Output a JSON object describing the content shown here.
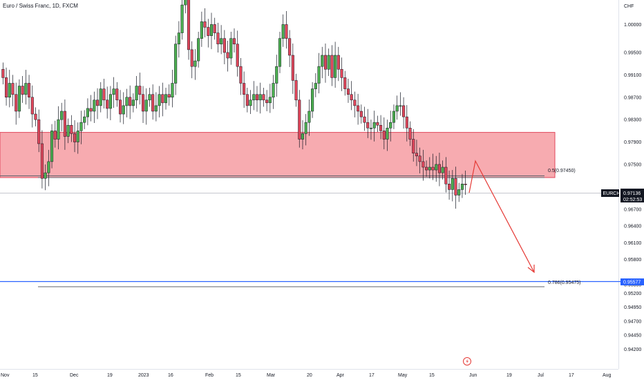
{
  "header": {
    "title": "Euro / Swiss Franc, 1D, FXCM"
  },
  "price_axis": {
    "currency": "CHF"
  },
  "symbol_badge": {
    "symbol": "EURCHF",
    "price": "0.97136",
    "countdown": "02:52:53"
  },
  "blue_line_label": "0.95577",
  "fib_levels": [
    {
      "label": "0.5(0.97450)",
      "value": 0.9745
    },
    {
      "label": "0.786(0.95475)",
      "value": 0.95475
    }
  ],
  "colors": {
    "up": "#4caf50",
    "down": "#e0475b",
    "zone_fill": "#f7a6ac",
    "zone_border": "#e0475b",
    "blue_line": "#2962ff",
    "arrow": "#e53935",
    "badge_bg": "#131722"
  },
  "icons": {
    "event": "lightning-icon"
  },
  "chart_data": {
    "type": "candlestick",
    "title": "Euro / Swiss Franc, 1D, FXCM",
    "y_ticks": [
      1.0,
      0.995,
      0.991,
      0.987,
      0.983,
      0.979,
      0.975,
      0.9745,
      0.967,
      0.964,
      0.961,
      0.958,
      0.9535,
      0.952,
      0.9495,
      0.947,
      0.9445,
      0.942
    ],
    "y_tick_labels": [
      "1.00000",
      "0.99500",
      "0.99100",
      "0.98700",
      "0.98300",
      "0.97900",
      "0.97500",
      "0.97450",
      "0.96700",
      "0.96400",
      "0.96100",
      "0.95800",
      "0.95350",
      "0.95200",
      "0.94950",
      "0.94700",
      "0.94450",
      "0.94200"
    ],
    "x_tick_labels": [
      "Nov",
      "15",
      "Dec",
      "19",
      "2023",
      "16",
      "Feb",
      "15",
      "Mar",
      "20",
      "Apr",
      "17",
      "May",
      "15",
      "Jun",
      "19",
      "Jul",
      "17",
      "Aug"
    ],
    "last_price": 0.97136,
    "horizontal_lines": [
      {
        "value": 0.95577,
        "label": "0.95577"
      },
      {
        "value": 0.95475,
        "label": "0.786(0.95475)"
      }
    ],
    "supply_zone": {
      "from": 0.9745,
      "to": 0.9785
    },
    "projection_path": [
      {
        "date": "Jun 1",
        "price": 0.97136
      },
      {
        "date": "Jun 3",
        "price": 0.9765
      },
      {
        "date": "Jul 10",
        "price": 0.9565
      }
    ],
    "closes": [
      0.9905,
      0.987,
      0.9895,
      0.9875,
      0.9845,
      0.989,
      0.9875,
      0.9895,
      0.987,
      0.984,
      0.983,
      0.9787,
      0.9725,
      0.9735,
      0.9755,
      0.981,
      0.9795,
      0.983,
      0.9845,
      0.98,
      0.982,
      0.9805,
      0.979,
      0.981,
      0.9825,
      0.9835,
      0.985,
      0.9845,
      0.9865,
      0.9855,
      0.9885,
      0.9865,
      0.985,
      0.9875,
      0.9885,
      0.9865,
      0.984,
      0.9855,
      0.987,
      0.9855,
      0.9865,
      0.989,
      0.9875,
      0.9845,
      0.9865,
      0.9875,
      0.9845,
      0.9855,
      0.9875,
      0.986,
      0.9875,
      0.987,
      0.9895,
      0.9965,
      0.9985,
      1.0035,
      1.0055,
      0.9955,
      0.9925,
      0.9935,
      0.9975,
      1.0005,
      0.9995,
      0.998,
      1.0,
      0.9985,
      0.9965,
      0.9975,
      0.995,
      0.994,
      0.9975,
      0.9965,
      0.9925,
      0.9895,
      0.9875,
      0.9855,
      0.9865,
      0.9875,
      0.9865,
      0.9875,
      0.9865,
      0.986,
      0.987,
      0.9895,
      0.9925,
      0.9975,
      1.0,
      0.9975,
      0.9945,
      0.99,
      0.9865,
      0.9795,
      0.9805,
      0.9825,
      0.9845,
      0.9885,
      0.9895,
      0.9925,
      0.9945,
      0.992,
      0.9945,
      0.9905,
      0.9945,
      0.992,
      0.9905,
      0.9885,
      0.9875,
      0.9865,
      0.9855,
      0.9845,
      0.9835,
      0.9825,
      0.9815,
      0.9815,
      0.9825,
      0.982,
      0.981,
      0.9795,
      0.9815,
      0.9825,
      0.9845,
      0.9855,
      0.9855,
      0.9835,
      0.9815,
      0.9795,
      0.977,
      0.9765,
      0.9755,
      0.9745,
      0.974,
      0.9745,
      0.974,
      0.975,
      0.9735,
      0.9745,
      0.9715,
      0.9705,
      0.9725,
      0.9695,
      0.9705,
      0.9715,
      0.97136
    ]
  }
}
